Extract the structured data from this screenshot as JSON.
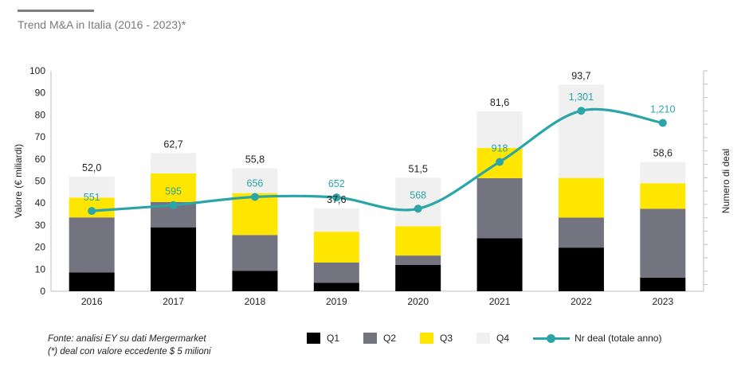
{
  "title": "Trend M&A in Italia (2016 - 2023)*",
  "footnotes": {
    "source": "Fonte: analisi EY su dati Mergermarket",
    "note": "(*) deal con valore eccedente $ 5 milioni"
  },
  "chart_data": {
    "type": "bar",
    "stacked": true,
    "categories": [
      "2016",
      "2017",
      "2018",
      "2019",
      "2020",
      "2021",
      "2022",
      "2023"
    ],
    "ylabel": "Valore (€ miliardi)",
    "y2label": "Numero di deal",
    "ylim": [
      0,
      100
    ],
    "yticks": [
      "0",
      "10",
      "20",
      "30",
      "40",
      "50",
      "60",
      "70",
      "80",
      "90",
      "100"
    ],
    "series": [
      {
        "name": "Q1",
        "color": "#000000",
        "values": [
          8.5,
          29,
          9.3,
          3.8,
          12,
          24,
          19.8,
          6.2
        ]
      },
      {
        "name": "Q2",
        "color": "#747480",
        "values": [
          25,
          11.5,
          16.2,
          9.2,
          4.2,
          27.3,
          13.6,
          31.2
        ]
      },
      {
        "name": "Q3",
        "color": "#ffe600",
        "values": [
          9,
          13,
          19,
          14,
          13.3,
          13.7,
          18,
          11.6
        ]
      },
      {
        "name": "Q4",
        "color": "#f0f0f0",
        "values": [
          9.5,
          9.2,
          11.3,
          10.6,
          22,
          16.6,
          42.3,
          9.6
        ]
      }
    ],
    "totals": [
      "52,0",
      "62,7",
      "55,8",
      "37,6",
      "51,5",
      "81,6",
      "93,7",
      "58,6"
    ],
    "line": {
      "name": "Nr deal (totale anno)",
      "color": "#2ba5a7",
      "values": [
        551,
        595,
        656,
        652,
        568,
        918,
        1301,
        1210
      ],
      "labels": [
        "551",
        "595",
        "656",
        "652",
        "568",
        "918",
        "1,301",
        "1,210"
      ],
      "y2lim": [
        -50,
        1600
      ]
    },
    "legend_position": "bottom"
  }
}
